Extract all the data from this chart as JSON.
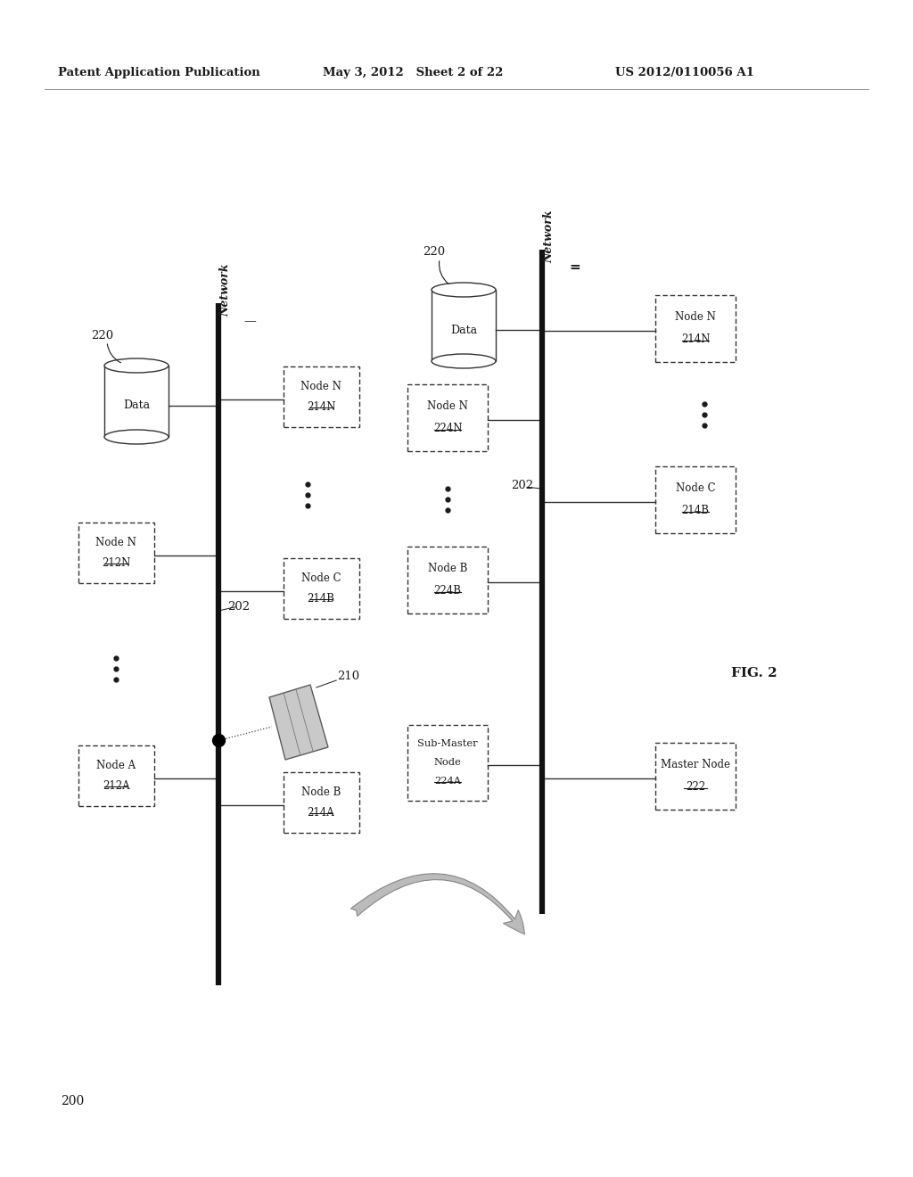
{
  "header_left": "Patent Application Publication",
  "header_mid": "May 3, 2012   Sheet 2 of 22",
  "header_right": "US 2012/0110056 A1",
  "fig_label": "FIG. 2",
  "bg_color": "#ffffff",
  "text_color": "#1a1a1a",
  "box_edge_color": "#333333",
  "network_line_color": "#111111",
  "diagram_label": "200"
}
